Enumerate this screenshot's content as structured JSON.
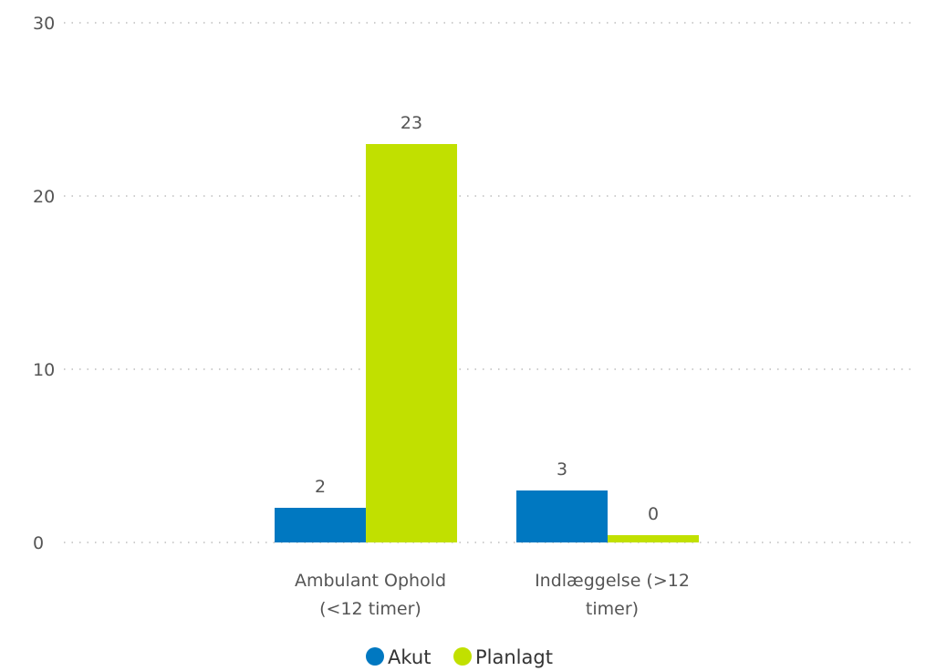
{
  "chart_data": {
    "type": "bar",
    "categories": [
      [
        "Ambulant Ophold",
        "(<12 timer)"
      ],
      [
        "Indlæggelse (>12",
        "timer)"
      ]
    ],
    "series": [
      {
        "name": "Akut",
        "color": "#0078c1",
        "values": [
          2,
          3
        ]
      },
      {
        "name": "Planlagt",
        "color": "#c1e000",
        "values": [
          23,
          0
        ]
      }
    ],
    "data_labels": [
      [
        "2",
        "3"
      ],
      [
        "23",
        "0"
      ]
    ],
    "yticks": [
      "0",
      "10",
      "20",
      "30"
    ],
    "ylim": [
      0,
      30
    ],
    "grid": true,
    "legend_position": "bottom-center"
  }
}
